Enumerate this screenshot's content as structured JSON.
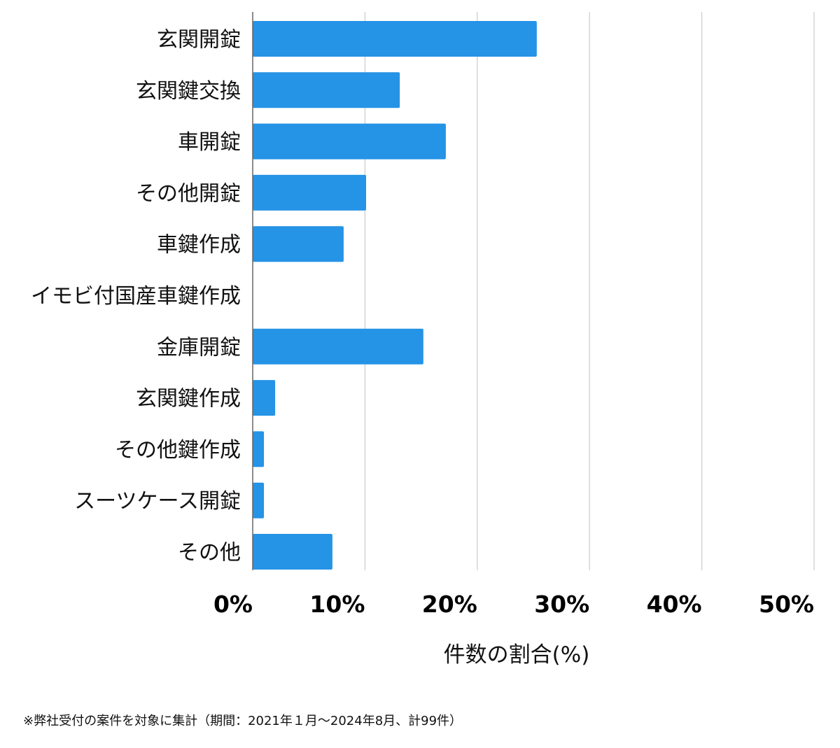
{
  "chart_data": {
    "type": "bar",
    "orientation": "horizontal",
    "categories": [
      "玄関開錠",
      "玄関鍵交換",
      "車開錠",
      "その他開錠",
      "車鍵作成",
      "イモビ付国産車鍵作成",
      "金庫開錠",
      "玄関鍵作成",
      "その他鍵作成",
      "スーツケース開錠",
      "その他"
    ],
    "values": [
      25.3,
      13.1,
      17.2,
      10.1,
      8.1,
      0,
      15.2,
      2.0,
      1.0,
      1.0,
      7.1
    ],
    "xlabel": "件数の割合(%)",
    "ylabel": "",
    "xlim": [
      0,
      50
    ],
    "xticks": [
      "0%",
      "10%",
      "20%",
      "30%",
      "40%",
      "50%"
    ],
    "grid": "vertical",
    "bar_color": "#2593e6",
    "grid_color": "#cccccc"
  },
  "footnote": "※弊社受付の案件を対象に集計（期間：2021年１月〜2024年8月、計99件）"
}
